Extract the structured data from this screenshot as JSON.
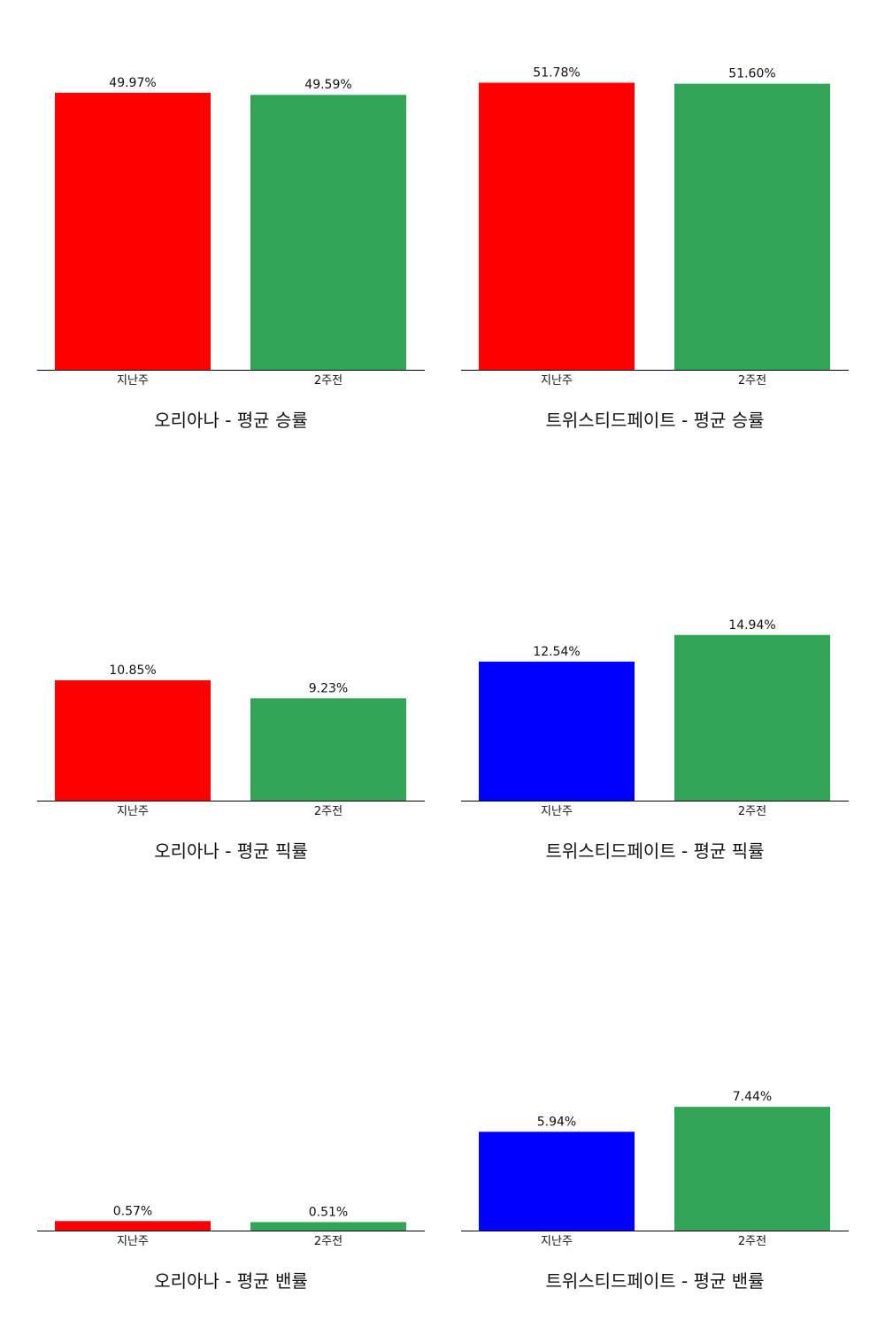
{
  "chart_data": [
    {
      "type": "bar",
      "title": "오리아나 - 평균 승률",
      "categories": [
        "지난주",
        "2주전"
      ],
      "values": [
        49.97,
        49.59
      ],
      "value_labels": [
        "49.97%",
        "49.59%"
      ],
      "colors": [
        "#ff0000",
        "#32a457"
      ],
      "ylim": [
        0,
        60
      ],
      "grid": false
    },
    {
      "type": "bar",
      "title": "트위스티드페이트 - 평균 승률",
      "categories": [
        "지난주",
        "2주전"
      ],
      "values": [
        51.78,
        51.6
      ],
      "value_labels": [
        "51.78%",
        "51.60%"
      ],
      "colors": [
        "#ff0000",
        "#32a457"
      ],
      "ylim": [
        0,
        60
      ],
      "grid": false
    },
    {
      "type": "bar",
      "title": "오리아나 - 평균 픽률",
      "categories": [
        "지난주",
        "2주전"
      ],
      "values": [
        10.85,
        9.23
      ],
      "value_labels": [
        "10.85%",
        "9.23%"
      ],
      "colors": [
        "#ff0000",
        "#32a457"
      ],
      "ylim": [
        0,
        30
      ],
      "grid": false
    },
    {
      "type": "bar",
      "title": "트위스티드페이트 - 평균 픽률",
      "categories": [
        "지난주",
        "2주전"
      ],
      "values": [
        12.54,
        14.94
      ],
      "value_labels": [
        "12.54%",
        "14.94%"
      ],
      "colors": [
        "#0000ff",
        "#32a457"
      ],
      "ylim": [
        0,
        30
      ],
      "grid": false
    },
    {
      "type": "bar",
      "title": "오리아나 - 평균 밴률",
      "categories": [
        "지난주",
        "2주전"
      ],
      "values": [
        0.57,
        0.51
      ],
      "value_labels": [
        "0.57%",
        "0.51%"
      ],
      "colors": [
        "#ff0000",
        "#32a457"
      ],
      "ylim": [
        0,
        20
      ],
      "grid": false
    },
    {
      "type": "bar",
      "title": "트위스티드페이트 - 평균 밴률",
      "categories": [
        "지난주",
        "2주전"
      ],
      "values": [
        5.94,
        7.44
      ],
      "value_labels": [
        "5.94%",
        "7.44%"
      ],
      "colors": [
        "#0000ff",
        "#32a457"
      ],
      "ylim": [
        0,
        20
      ],
      "grid": false
    }
  ]
}
